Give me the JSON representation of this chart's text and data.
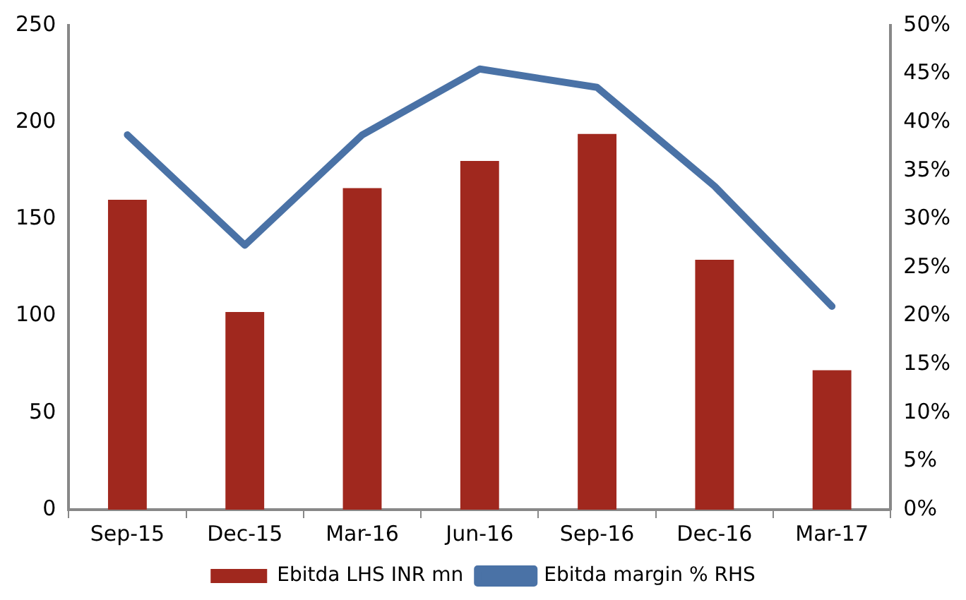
{
  "chart_data": {
    "type": "bar",
    "categories": [
      "Sep-15",
      "Dec-15",
      "Mar-16",
      "Jun-16",
      "Sep-16",
      "Dec-16",
      "Mar-17"
    ],
    "series": [
      {
        "name": "Ebitda LHS INR mn",
        "color": "#a0281e",
        "values": [
          160,
          102,
          166,
          180,
          194,
          129,
          72
        ]
      },
      {
        "name": "Ebitda margin % RHS",
        "type": "line",
        "axis": "y2",
        "color": "#4a72a6",
        "values": [
          38.7,
          27.3,
          38.7,
          45.5,
          43.6,
          33.4,
          21.0
        ]
      }
    ],
    "ylim": [
      0,
      250
    ],
    "yticks": [
      0,
      50,
      100,
      150,
      200,
      250
    ],
    "y2lim": [
      0,
      50
    ],
    "y2ticks": [
      {
        "value": 0,
        "label": "0%"
      },
      {
        "value": 5,
        "label": "5%"
      },
      {
        "value": 10,
        "label": "10%"
      },
      {
        "value": 15,
        "label": "15%"
      },
      {
        "value": 20,
        "label": "20%"
      },
      {
        "value": 25,
        "label": "25%"
      },
      {
        "value": 30,
        "label": "30%"
      },
      {
        "value": 35,
        "label": "35%"
      },
      {
        "value": 40,
        "label": "40%"
      },
      {
        "value": 45,
        "label": "45%"
      },
      {
        "value": 50,
        "label": "50%"
      }
    ],
    "grid": false,
    "legend": "bottom",
    "marker": "none"
  }
}
